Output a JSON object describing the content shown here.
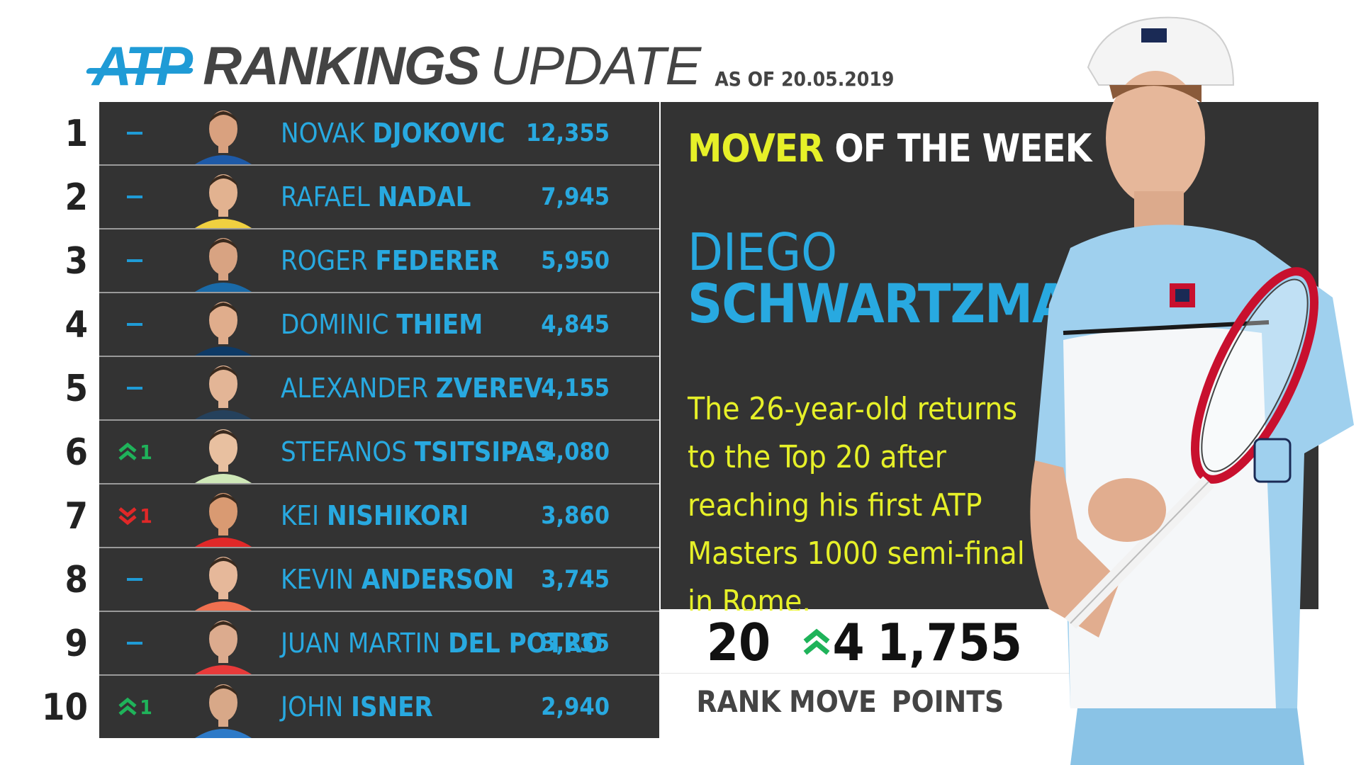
{
  "header": {
    "logo_text": "ATP",
    "title_rankings": "RANKINGS",
    "title_update": "UPDATE",
    "as_of": "AS OF 20.05.2019"
  },
  "colors": {
    "accent": "#1f9bd6",
    "name_blue": "#28a9e0",
    "yellow": "#e6f028",
    "up": "#1fb35a",
    "down": "#e02828",
    "panel": "#333333"
  },
  "rankings": [
    {
      "rank": "1",
      "move": "–",
      "move_dir": "none",
      "move_val": "",
      "first": "NOVAK",
      "last": "DJOKOVIC",
      "points": "12,355"
    },
    {
      "rank": "2",
      "move": "–",
      "move_dir": "none",
      "move_val": "",
      "first": "RAFAEL",
      "last": "NADAL",
      "points": "7,945"
    },
    {
      "rank": "3",
      "move": "–",
      "move_dir": "none",
      "move_val": "",
      "first": "ROGER",
      "last": "FEDERER",
      "points": "5,950"
    },
    {
      "rank": "4",
      "move": "–",
      "move_dir": "none",
      "move_val": "",
      "first": "DOMINIC",
      "last": "THIEM",
      "points": "4,845"
    },
    {
      "rank": "5",
      "move": "–",
      "move_dir": "none",
      "move_val": "",
      "first": "ALEXANDER",
      "last": "ZVEREV",
      "points": "4,155"
    },
    {
      "rank": "6",
      "move": "",
      "move_dir": "up",
      "move_val": "1",
      "first": "STEFANOS",
      "last": "TSITSIPAS",
      "points": "4,080"
    },
    {
      "rank": "7",
      "move": "",
      "move_dir": "down",
      "move_val": "1",
      "first": "KEI",
      "last": "NISHIKORI",
      "points": "3,860"
    },
    {
      "rank": "8",
      "move": "–",
      "move_dir": "none",
      "move_val": "",
      "first": "KEVIN",
      "last": "ANDERSON",
      "points": "3,745"
    },
    {
      "rank": "9",
      "move": "–",
      "move_dir": "none",
      "move_val": "",
      "first": "JUAN MARTIN",
      "last": "DEL POTRO",
      "points": "3,235"
    },
    {
      "rank": "10",
      "move": "",
      "move_dir": "up",
      "move_val": "1",
      "first": "JOHN",
      "last": "ISNER",
      "points": "2,940"
    }
  ],
  "mover": {
    "title_highlight": "MOVER",
    "title_rest": "OF THE WEEK",
    "first_name": "DIEGO",
    "last_name": "SCHWARTZMAN",
    "description": "The 26-year-old returns to the Top 20 after reaching his first ATP Masters 1000 semi-final in Rome.",
    "stats": {
      "rank_value": "20",
      "rank_label": "RANK",
      "move_value": "4",
      "move_label": "MOVE",
      "points_value": "1,755",
      "points_label": "POINTS"
    }
  },
  "icons": {
    "up": "chevron-double-up-icon",
    "down": "chevron-double-down-icon",
    "none": "dash-icon"
  }
}
